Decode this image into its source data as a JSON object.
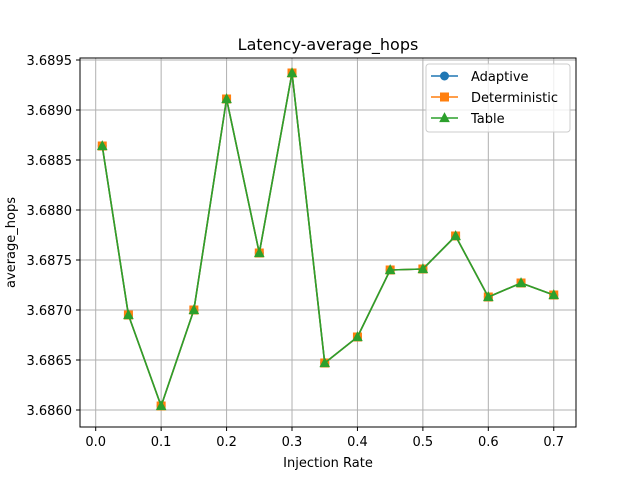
{
  "chart_data": {
    "type": "line",
    "title": "Latency-average_hops",
    "xlabel": "Injection Rate",
    "ylabel": "average_hops",
    "xlim": [
      -0.024,
      0.734
    ],
    "ylim": [
      3.68583,
      3.68952
    ],
    "xticks": [
      0.0,
      0.1,
      0.2,
      0.3,
      0.4,
      0.5,
      0.6,
      0.7
    ],
    "xtick_labels": [
      "0.0",
      "0.1",
      "0.2",
      "0.3",
      "0.4",
      "0.5",
      "0.6",
      "0.7"
    ],
    "yticks": [
      3.686,
      3.6865,
      3.687,
      3.6875,
      3.688,
      3.6885,
      3.689,
      3.6895
    ],
    "ytick_labels": [
      "3.6860",
      "3.6865",
      "3.6870",
      "3.6875",
      "3.6880",
      "3.6885",
      "3.6890",
      "3.6895"
    ],
    "grid": true,
    "legend_position": "top-right",
    "x": [
      0.01,
      0.05,
      0.1,
      0.15,
      0.2,
      0.25,
      0.3,
      0.35,
      0.4,
      0.45,
      0.5,
      0.55,
      0.6,
      0.65,
      0.7
    ],
    "series": [
      {
        "name": "Adaptive",
        "color": "#1f77b4",
        "marker": "circle",
        "values": [
          3.68864,
          3.68695,
          3.68604,
          3.687,
          3.68911,
          3.68757,
          3.68937,
          3.68647,
          3.68673,
          3.6874,
          3.68741,
          3.68774,
          3.68713,
          3.68727,
          3.68715
        ]
      },
      {
        "name": "Deterministic",
        "color": "#ff7f0e",
        "marker": "square",
        "values": [
          3.68864,
          3.68695,
          3.68604,
          3.687,
          3.68911,
          3.68757,
          3.68937,
          3.68647,
          3.68673,
          3.6874,
          3.68741,
          3.68774,
          3.68713,
          3.68727,
          3.68715
        ]
      },
      {
        "name": "Table",
        "color": "#2ca02c",
        "marker": "triangle",
        "values": [
          3.68864,
          3.68695,
          3.68604,
          3.687,
          3.68911,
          3.68757,
          3.68937,
          3.68647,
          3.68673,
          3.6874,
          3.68741,
          3.68774,
          3.68713,
          3.68727,
          3.68715
        ]
      }
    ]
  }
}
